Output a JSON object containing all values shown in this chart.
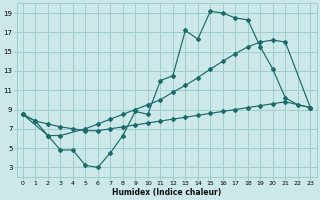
{
  "xlabel": "Humidex (Indice chaleur)",
  "background_color": "#cce8e8",
  "grid_color": "#9ecece",
  "line_color": "#1a6b6b",
  "xlim": [
    -0.5,
    23.5
  ],
  "ylim": [
    2,
    20
  ],
  "xticks": [
    0,
    1,
    2,
    3,
    4,
    5,
    6,
    7,
    8,
    9,
    10,
    11,
    12,
    13,
    14,
    15,
    16,
    17,
    18,
    19,
    20,
    21,
    22,
    23
  ],
  "yticks": [
    3,
    5,
    7,
    9,
    11,
    13,
    15,
    17,
    19
  ],
  "line1_x": [
    0,
    1,
    2,
    3,
    4,
    5,
    6,
    7,
    8,
    9,
    10,
    11,
    12,
    13,
    14,
    15,
    16,
    17,
    18,
    19,
    20,
    21,
    22,
    23
  ],
  "line1_y": [
    8.5,
    7.8,
    6.3,
    4.8,
    4.8,
    3.2,
    3.0,
    4.5,
    6.3,
    8.8,
    8.5,
    12.0,
    12.5,
    17.2,
    16.3,
    19.2,
    19.0,
    18.5,
    18.3,
    15.5,
    13.2,
    10.2,
    9.5,
    9.2
  ],
  "line2_x": [
    0,
    2,
    3,
    5,
    6,
    7,
    8,
    9,
    10,
    11,
    12,
    13,
    14,
    15,
    16,
    17,
    18,
    19,
    20,
    21,
    23
  ],
  "line2_y": [
    8.5,
    6.3,
    6.3,
    7.0,
    7.5,
    8.0,
    8.5,
    9.0,
    9.5,
    10.0,
    10.8,
    11.5,
    12.3,
    13.2,
    14.0,
    14.8,
    15.5,
    16.0,
    16.2,
    16.0,
    9.2
  ],
  "line3_x": [
    0,
    1,
    2,
    3,
    4,
    5,
    6,
    7,
    8,
    9,
    10,
    11,
    12,
    13,
    14,
    15,
    16,
    17,
    18,
    19,
    20,
    21,
    23
  ],
  "line3_y": [
    8.5,
    7.8,
    7.5,
    7.2,
    7.0,
    6.8,
    6.8,
    7.0,
    7.2,
    7.4,
    7.6,
    7.8,
    8.0,
    8.2,
    8.4,
    8.6,
    8.8,
    9.0,
    9.2,
    9.4,
    9.6,
    9.8,
    9.2
  ]
}
